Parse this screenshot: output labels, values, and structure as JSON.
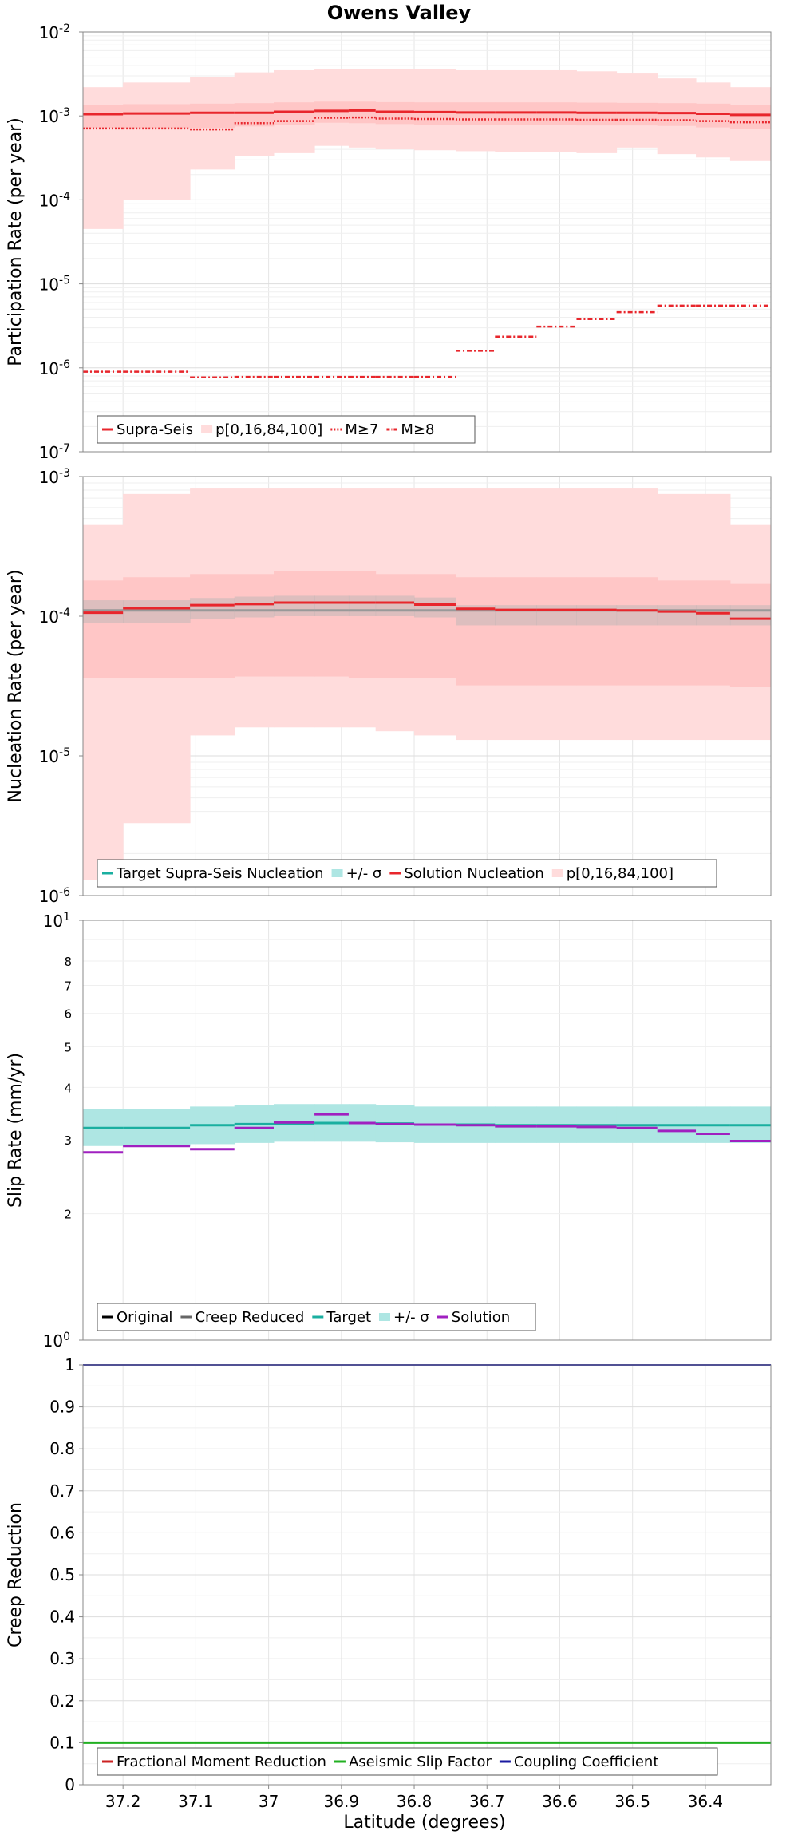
{
  "chart_data": {
    "type": "line",
    "title": "Owens Valley",
    "xlabel": "Latitude (degrees)",
    "x_direction": "descending",
    "xlim": [
      37.255,
      36.31
    ],
    "x_ticks": [
      "37.2",
      "37.1",
      "37",
      "36.9",
      "36.8",
      "36.7",
      "36.6",
      "36.5",
      "36.4"
    ],
    "x_tick_values": [
      37.2,
      37.1,
      37.0,
      36.9,
      36.8,
      36.7,
      36.6,
      36.5,
      36.4
    ],
    "segment_lat_edges": [
      37.255,
      37.2,
      37.108,
      37.047,
      36.993,
      36.937,
      36.89,
      36.853,
      36.8,
      36.743,
      36.689,
      36.632,
      36.577,
      36.522,
      36.466,
      36.413,
      36.366,
      36.31
    ],
    "grid": true,
    "panels": [
      {
        "id": "participation",
        "ylabel": "Participation Rate (per year)",
        "y_scale": "log",
        "ylim": [
          1e-07,
          0.01
        ],
        "y_tick_bases": [
          "10",
          "10",
          "10",
          "10",
          "10",
          "10"
        ],
        "y_tick_exps": [
          "-7",
          "-6",
          "-5",
          "-4",
          "-3",
          "-2"
        ],
        "legend": [
          "Supra-Seis",
          "p[0,16,84,100]",
          "M≥7",
          "M≥8"
        ],
        "legend_placement": "bottom-left",
        "series": [
          {
            "name": "Supra-Seis",
            "style": "solid",
            "color": "#e8262c",
            "values": [
              0.00105,
              0.00107,
              0.00109,
              0.00109,
              0.00112,
              0.00115,
              0.00116,
              0.00112,
              0.00111,
              0.0011,
              0.0011,
              0.0011,
              0.00109,
              0.00109,
              0.00108,
              0.00106,
              0.00103
            ]
          },
          {
            "name": "M≥7",
            "style": "dotted",
            "color": "#e8262c",
            "values": [
              0.00071,
              0.00071,
              0.00069,
              0.00082,
              0.00087,
              0.00095,
              0.00096,
              0.00093,
              0.00092,
              0.00091,
              0.00091,
              0.00091,
              0.0009,
              0.0009,
              0.00089,
              0.00087,
              0.00084
            ]
          },
          {
            "name": "M≥8",
            "style": "dashdot",
            "color": "#e8262c",
            "values": [
              9e-07,
              9e-07,
              7.7e-07,
              7.8e-07,
              7.8e-07,
              7.8e-07,
              7.8e-07,
              7.8e-07,
              7.8e-07,
              1.6e-06,
              2.35e-06,
              3.1e-06,
              3.8e-06,
              4.6e-06,
              5.5e-06,
              5.5e-06,
              5.5e-06
            ]
          }
        ],
        "bands": [
          {
            "name": "p[0,100]",
            "color": "#ffdcdc",
            "low": [
              4.5e-05,
              0.0001,
              0.00023,
              0.00033,
              0.00036,
              0.00044,
              0.00042,
              0.0004,
              0.00039,
              0.00038,
              0.00037,
              0.00037,
              0.00036,
              0.00042,
              0.00035,
              0.00032,
              0.00029
            ],
            "high": [
              0.0022,
              0.0025,
              0.0029,
              0.0033,
              0.0035,
              0.0036,
              0.0036,
              0.0036,
              0.0036,
              0.0035,
              0.0035,
              0.0035,
              0.0034,
              0.0032,
              0.0028,
              0.0025,
              0.0022
            ]
          },
          {
            "name": "p[16,84]",
            "color": "#ffc6c6",
            "low": [
              0.00072,
              0.00072,
              0.00072,
              0.00075,
              0.00079,
              0.00083,
              0.00082,
              0.0008,
              0.00079,
              0.00078,
              0.00078,
              0.00078,
              0.00077,
              0.00077,
              0.00076,
              0.00073,
              0.0007
            ],
            "high": [
              0.00135,
              0.00138,
              0.0014,
              0.00142,
              0.00145,
              0.00148,
              0.00148,
              0.00146,
              0.00145,
              0.00145,
              0.00145,
              0.00145,
              0.00144,
              0.00143,
              0.00142,
              0.0014,
              0.00135
            ]
          }
        ]
      },
      {
        "id": "nucleation",
        "ylabel": "Nucleation Rate (per year)",
        "y_scale": "log",
        "ylim": [
          1e-06,
          0.001
        ],
        "y_tick_bases": [
          "10",
          "10",
          "10",
          "10"
        ],
        "y_tick_exps": [
          "-6",
          "-5",
          "-4",
          "-3"
        ],
        "legend": [
          "Target Supra-Seis Nucleation",
          "+/- σ",
          "Solution Nucleation",
          "p[0,16,84,100]"
        ],
        "legend_placement": "bottom-left",
        "series": [
          {
            "name": "Target Supra-Seis Nucleation",
            "style": "solid",
            "color": "#999999",
            "values": [
              0.00011,
              0.00011,
              0.00011,
              0.00011,
              0.00011,
              0.00011,
              0.00011,
              0.00011,
              0.00011,
              0.00011,
              0.00011,
              0.00011,
              0.00011,
              0.00011,
              0.00011,
              0.00011,
              0.00011
            ]
          },
          {
            "name": "Solution Nucleation",
            "style": "solid",
            "color": "#e8262c",
            "values": [
              0.000106,
              0.000114,
              0.00012,
              0.000122,
              0.000125,
              0.000125,
              0.000125,
              0.000125,
              0.000121,
              0.000113,
              0.000111,
              0.000111,
              0.000111,
              0.00011,
              0.000108,
              0.000105,
              9.6e-05
            ]
          }
        ],
        "bands": [
          {
            "name": "p[0,100]",
            "color": "#ffdcdc",
            "low": [
              1.3e-06,
              3.3e-06,
              1.4e-05,
              1.6e-05,
              1.6e-05,
              1.6e-05,
              1.6e-05,
              1.5e-05,
              1.4e-05,
              1.3e-05,
              1.3e-05,
              1.3e-05,
              1.3e-05,
              1.3e-05,
              1.3e-05,
              1.3e-05,
              1.3e-05
            ],
            "high": [
              0.00045,
              0.00075,
              0.00082,
              0.00082,
              0.00082,
              0.00082,
              0.00082,
              0.00082,
              0.00082,
              0.00082,
              0.00082,
              0.00082,
              0.00082,
              0.00082,
              0.00075,
              0.00075,
              0.00045
            ]
          },
          {
            "name": "p[16,84]",
            "color": "#ffc6c6",
            "low": [
              3.6e-05,
              3.6e-05,
              3.6e-05,
              3.7e-05,
              3.7e-05,
              3.7e-05,
              3.6e-05,
              3.6e-05,
              3.6e-05,
              3.2e-05,
              3.2e-05,
              3.2e-05,
              3.2e-05,
              3.2e-05,
              3.2e-05,
              3.2e-05,
              3.1e-05
            ],
            "high": [
              0.00018,
              0.00019,
              0.0002,
              0.0002,
              0.00021,
              0.00021,
              0.00021,
              0.0002,
              0.0002,
              0.00019,
              0.00019,
              0.00019,
              0.00019,
              0.00019,
              0.00018,
              0.00018,
              0.00017
            ]
          },
          {
            "name": "+/- σ",
            "color": "#b3b3b3",
            "alpha": 0.45,
            "low": [
              9e-05,
              9e-05,
              9.5e-05,
              9.8e-05,
              0.0001,
              0.0001,
              0.0001,
              0.0001,
              9.8e-05,
              8.6e-05,
              8.6e-05,
              8.6e-05,
              8.6e-05,
              8.6e-05,
              8.6e-05,
              8.6e-05,
              8.6e-05
            ],
            "high": [
              0.00013,
              0.00013,
              0.000135,
              0.000138,
              0.00014,
              0.00014,
              0.00014,
              0.00014,
              0.000136,
              0.00012,
              0.00012,
              0.00012,
              0.00012,
              0.00012,
              0.00012,
              0.00012,
              0.00012
            ]
          }
        ]
      },
      {
        "id": "slip",
        "ylabel": "Slip Rate (mm/yr)",
        "y_scale": "log",
        "ylim": [
          1,
          10
        ],
        "y_tick_bases": [
          "10",
          "10"
        ],
        "y_tick_exps": [
          "0",
          "1"
        ],
        "y_minor_ticks": [
          "2",
          "3",
          "4",
          "5",
          "6",
          "7",
          "8"
        ],
        "legend": [
          "Original",
          "Creep Reduced",
          "Target",
          "+/- σ",
          "Solution"
        ],
        "legend_placement": "bottom-left",
        "series": [
          {
            "name": "Target",
            "style": "solid",
            "color": "#1aafa0",
            "values": [
              3.2,
              3.2,
              3.25,
              3.27,
              3.27,
              3.29,
              3.29,
              3.28,
              3.26,
              3.26,
              3.25,
              3.25,
              3.25,
              3.25,
              3.25,
              3.25,
              3.25
            ]
          },
          {
            "name": "Solution",
            "style": "solid",
            "color": "#a020c0",
            "values": [
              2.8,
              2.9,
              2.85,
              3.2,
              3.3,
              3.45,
              3.29,
              3.27,
              3.26,
              3.25,
              3.23,
              3.23,
              3.22,
              3.2,
              3.15,
              3.1,
              2.98
            ]
          }
        ],
        "bands": [
          {
            "name": "+/- σ",
            "color": "#aee6e3",
            "low": [
              2.9,
              2.9,
              2.93,
              2.95,
              2.97,
              2.97,
              2.97,
              2.96,
              2.95,
              2.95,
              2.95,
              2.95,
              2.95,
              2.95,
              2.95,
              2.95,
              2.95
            ],
            "high": [
              3.55,
              3.55,
              3.6,
              3.63,
              3.65,
              3.65,
              3.65,
              3.63,
              3.6,
              3.6,
              3.6,
              3.6,
              3.6,
              3.6,
              3.6,
              3.6,
              3.6
            ]
          }
        ]
      },
      {
        "id": "creep",
        "ylabel": "Creep Reduction",
        "y_scale": "linear",
        "ylim": [
          0,
          1
        ],
        "y_ticks": [
          "0",
          "0.1",
          "0.2",
          "0.3",
          "0.4",
          "0.5",
          "0.6",
          "0.7",
          "0.8",
          "0.9",
          "1"
        ],
        "legend": [
          "Fractional Moment Reduction",
          "Aseismic Slip Factor",
          "Coupling Coefficient"
        ],
        "legend_placement": "bottom-left",
        "series": [
          {
            "name": "Aseismic Slip Factor",
            "style": "solid",
            "color": "#22b022",
            "values": [
              0.1,
              0.1
            ]
          },
          {
            "name": "Coupling Coefficient",
            "style": "solid",
            "color": "#1a1aa0",
            "values": [
              1,
              1
            ]
          }
        ]
      }
    ],
    "legend_colors": {
      "participation": [
        "#e8262c",
        "#ffdcdc",
        "#e8262c",
        "#e8262c"
      ],
      "nucleation": [
        "#1aafa0",
        "#aee6e3",
        "#e8262c",
        "#ffdcdc"
      ],
      "slip": [
        "#000000",
        "#666666",
        "#1aafa0",
        "#aee6e3",
        "#a020c0"
      ],
      "creep": [
        "#cc2222",
        "#22b022",
        "#1a1aa0"
      ]
    }
  }
}
